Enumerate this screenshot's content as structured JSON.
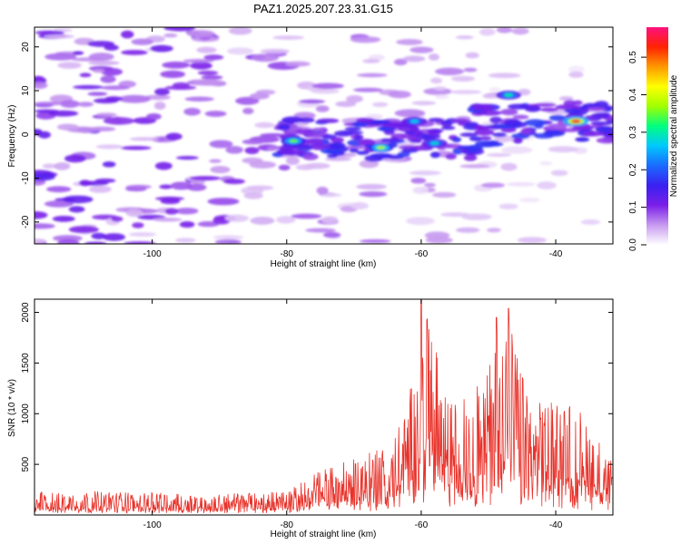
{
  "chart_data": [
    {
      "type": "heatmap",
      "title": "PAZ1.2025.207.23.31.G15",
      "xlabel": "Height of straight line (km)",
      "ylabel": "Frequency (Hz)",
      "xlim": [
        -117.5,
        -31.5
      ],
      "ylim": [
        -25,
        24.5
      ],
      "xticks": [
        -100,
        -80,
        -60,
        -40
      ],
      "yticks": [
        -20,
        -10,
        0,
        10,
        20
      ],
      "colorbar": {
        "label": "Normalized spectral amplitude",
        "range": [
          0.0,
          0.58
        ],
        "ticks": [
          0.0,
          0.1,
          0.2,
          0.3,
          0.4,
          0.5
        ],
        "colors": [
          "#ffffff",
          "#c89af0",
          "#7a1fe8",
          "#3a20f0",
          "#1a6bff",
          "#00c8ff",
          "#00ff80",
          "#a0ff00",
          "#ffff00",
          "#ff9900",
          "#ff2200",
          "#ff1180"
        ]
      },
      "features": [
        {
          "x": -37,
          "y": 3,
          "value": 0.56
        },
        {
          "x": -66,
          "y": -3,
          "value": 0.38
        },
        {
          "x": -79,
          "y": -1.5,
          "value": 0.35
        },
        {
          "x": -47,
          "y": 9,
          "value": 0.3
        },
        {
          "x": -58,
          "y": -2,
          "value": 0.28
        },
        {
          "x": -61,
          "y": 3,
          "value": 0.27
        }
      ],
      "grid": false
    },
    {
      "type": "line",
      "xlabel": "Height of straight line (km)",
      "ylabel": "SNR (10 * v/v)",
      "xlim": [
        -117.5,
        -31.5
      ],
      "ylim": [
        0,
        2130
      ],
      "xticks": [
        -100,
        -80,
        -60,
        -40
      ],
      "yticks": [
        500,
        1000,
        1500,
        2000
      ],
      "color": "#e8322a",
      "envelope": [
        {
          "x": -117.5,
          "max": 230
        },
        {
          "x": -110,
          "max": 240
        },
        {
          "x": -100,
          "max": 220
        },
        {
          "x": -90,
          "max": 210
        },
        {
          "x": -80,
          "max": 240
        },
        {
          "x": -75,
          "max": 450
        },
        {
          "x": -70,
          "max": 550
        },
        {
          "x": -65,
          "max": 700
        },
        {
          "x": -62,
          "max": 1050
        },
        {
          "x": -60,
          "max": 2130
        },
        {
          "x": -58,
          "max": 1700
        },
        {
          "x": -56,
          "max": 1100
        },
        {
          "x": -53,
          "max": 1200
        },
        {
          "x": -50,
          "max": 1480
        },
        {
          "x": -48.5,
          "max": 1950
        },
        {
          "x": -47,
          "max": 2040
        },
        {
          "x": -44,
          "max": 1100
        },
        {
          "x": -40,
          "max": 1150
        },
        {
          "x": -36,
          "max": 1050
        },
        {
          "x": -31.5,
          "max": 500
        }
      ],
      "peaks": [
        {
          "x": -60,
          "y": 2130
        },
        {
          "x": -47,
          "y": 2040
        },
        {
          "x": -48.8,
          "y": 1950
        }
      ],
      "grid": false
    }
  ]
}
